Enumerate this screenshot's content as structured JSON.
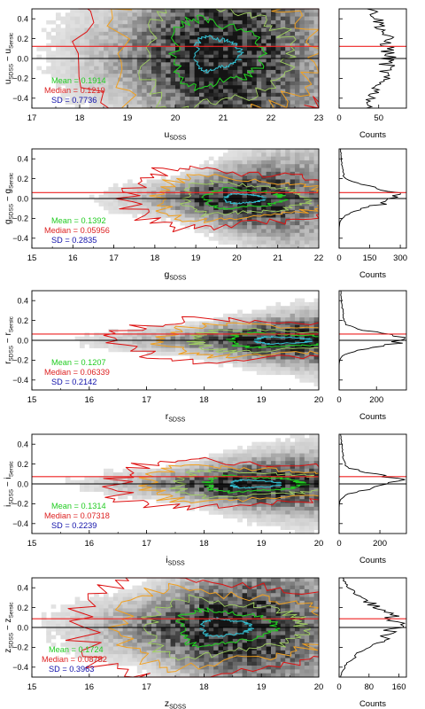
{
  "chart_data": [
    {
      "type": "heatmap",
      "band": "u",
      "xlabel": {
        "main": "u",
        "sub": "SDSS"
      },
      "ylabel": {
        "a": "u",
        "a_sub": "SDSS",
        "sep": " − ",
        "b": "u",
        "b_sub": "Sersic"
      },
      "x_ticks": [
        "17",
        "18",
        "19",
        "20",
        "21",
        "22",
        "23"
      ],
      "xlim": [
        17,
        23
      ],
      "y_ticks": [
        "0.4",
        "0.2",
        "0.0",
        "−0.2",
        "−0.4"
      ],
      "ylim": [
        -0.5,
        0.5
      ],
      "density_center": {
        "x": 20.9,
        "y": 0.05
      },
      "density_spread": {
        "x": 0.9,
        "y": 0.35
      },
      "median_line": 0.1219,
      "stats": [
        {
          "label": "Mean = 0.1914",
          "color": "#22cc22"
        },
        {
          "label": "Median = 0.1219",
          "color": "#dd2222"
        },
        {
          "label": "SD = 0.7736",
          "color": "#1111aa"
        }
      ],
      "hist_xlabel": "Counts",
      "hist_ticks": [
        "0",
        "50"
      ],
      "hist_tick_values": [
        0,
        50
      ],
      "hist_xlim": [
        0,
        85
      ],
      "hist_peak": 62,
      "hist_center": 0.05,
      "hist_width": 0.5
    },
    {
      "type": "heatmap",
      "band": "g",
      "xlabel": {
        "main": "g",
        "sub": "SDSS"
      },
      "ylabel": {
        "a": "g",
        "a_sub": "SDSS",
        "sep": " − ",
        "b": "g",
        "b_sub": "Sersic"
      },
      "x_ticks": [
        "15",
        "16",
        "17",
        "18",
        "19",
        "20",
        "21",
        "22"
      ],
      "xlim": [
        15,
        22
      ],
      "y_ticks": [
        "0.4",
        "0.2",
        "0.0",
        "−0.2",
        "−0.4"
      ],
      "ylim": [
        -0.5,
        0.5
      ],
      "density_center": {
        "x": 20.2,
        "y": 0.0
      },
      "density_spread": {
        "x": 0.9,
        "y": 0.1
      },
      "median_line": 0.05956,
      "stats": [
        {
          "label": "Mean = 0.1392",
          "color": "#22cc22"
        },
        {
          "label": "Median = 0.05956",
          "color": "#dd2222"
        },
        {
          "label": "SD = 0.2835",
          "color": "#1111aa"
        }
      ],
      "hist_xlabel": "Counts",
      "hist_ticks": [
        "0",
        "150",
        "300"
      ],
      "hist_tick_values": [
        0,
        150,
        300
      ],
      "hist_xlim": [
        0,
        330
      ],
      "hist_peak": 290,
      "hist_center": 0.02,
      "hist_width": 0.09
    },
    {
      "type": "heatmap",
      "band": "r",
      "xlabel": {
        "main": "r",
        "sub": "SDSS"
      },
      "ylabel": {
        "a": "r",
        "a_sub": "SDSS",
        "sep": " − ",
        "b": "r",
        "b_sub": "Sersic"
      },
      "x_ticks": [
        "15",
        "16",
        "17",
        "18",
        "19",
        "20"
      ],
      "xlim": [
        15,
        20
      ],
      "y_ticks": [
        "0.4",
        "0.2",
        "0.0",
        "−0.2",
        "−0.4"
      ],
      "ylim": [
        -0.5,
        0.5
      ],
      "density_center": {
        "x": 19.4,
        "y": 0.0
      },
      "density_spread": {
        "x": 0.9,
        "y": 0.07
      },
      "median_line": 0.06339,
      "stats": [
        {
          "label": "Mean = 0.1207",
          "color": "#22cc22"
        },
        {
          "label": "Median = 0.06339",
          "color": "#dd2222"
        },
        {
          "label": "SD = 0.2142",
          "color": "#1111aa"
        }
      ],
      "hist_xlabel": "Counts",
      "hist_ticks": [
        "0",
        "200"
      ],
      "hist_tick_values": [
        0,
        200
      ],
      "hist_xlim": [
        0,
        360
      ],
      "hist_peak": 340,
      "hist_center": 0.01,
      "hist_width": 0.07
    },
    {
      "type": "heatmap",
      "band": "i",
      "xlabel": {
        "main": "i",
        "sub": "SDSS"
      },
      "ylabel": {
        "a": "i",
        "a_sub": "SDSS",
        "sep": " − ",
        "b": "i",
        "b_sub": "Sersic"
      },
      "x_ticks": [
        "15",
        "16",
        "17",
        "18",
        "19",
        "20"
      ],
      "xlim": [
        15,
        20
      ],
      "y_ticks": [
        "0.4",
        "0.2",
        "0.0",
        "−0.2",
        "−0.4"
      ],
      "ylim": [
        -0.5,
        0.5
      ],
      "density_center": {
        "x": 18.9,
        "y": 0.0
      },
      "density_spread": {
        "x": 0.8,
        "y": 0.08
      },
      "median_line": 0.07318,
      "stats": [
        {
          "label": "Mean = 0.1314",
          "color": "#22cc22"
        },
        {
          "label": "Median = 0.07318",
          "color": "#dd2222"
        },
        {
          "label": "SD = 0.2239",
          "color": "#1111aa"
        }
      ],
      "hist_xlabel": "Counts",
      "hist_ticks": [
        "0",
        "200"
      ],
      "hist_tick_values": [
        0,
        200
      ],
      "hist_xlim": [
        0,
        330
      ],
      "hist_peak": 300,
      "hist_center": 0.03,
      "hist_width": 0.07
    },
    {
      "type": "heatmap",
      "band": "z",
      "xlabel": {
        "main": "z",
        "sub": "SDSS"
      },
      "ylabel": {
        "a": "z",
        "a_sub": "SDSS",
        "sep": " − ",
        "b": "z",
        "b_sub": "Sersic"
      },
      "x_ticks": [
        "15",
        "16",
        "17",
        "18",
        "19",
        "20"
      ],
      "xlim": [
        15,
        20
      ],
      "y_ticks": [
        "0.4",
        "0.2",
        "0.0",
        "−0.2",
        "−0.4"
      ],
      "ylim": [
        -0.5,
        0.5
      ],
      "density_center": {
        "x": 18.4,
        "y": 0.0
      },
      "density_spread": {
        "x": 0.8,
        "y": 0.18
      },
      "median_line": 0.08752,
      "stats": [
        {
          "label": "Mean = 0.1724",
          "color": "#22cc22"
        },
        {
          "label": "Median = 0.08752",
          "color": "#dd2222"
        },
        {
          "label": "SD = 0.3963",
          "color": "#1111aa"
        }
      ],
      "hist_xlabel": "Counts",
      "hist_ticks": [
        "0",
        "80",
        "160"
      ],
      "hist_tick_values": [
        0,
        80,
        160
      ],
      "hist_xlim": [
        0,
        180
      ],
      "hist_peak": 150,
      "hist_center": 0.03,
      "hist_width": 0.2
    }
  ],
  "colors": {
    "median_line": "#ee2222",
    "zero_line": "#000000",
    "contour_outer": "#dd1111",
    "contour_mid": "#f0a020",
    "contour_inner": "#a0d060",
    "contour_core": "#22cc22",
    "contour_peak": "#33bbcc"
  }
}
